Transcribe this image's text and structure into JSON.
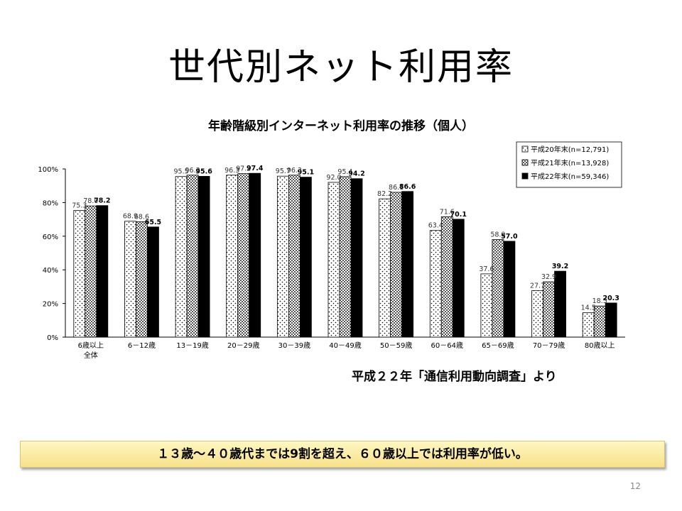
{
  "slide": {
    "title": "世代別ネット利用率",
    "source": "平成２２年「通信利用動向調査」より",
    "conclusion": "１３歳～４０歳代までは9割を超え、６０歳以上では利用率が低い。",
    "page_number": "12"
  },
  "chart_data": {
    "type": "bar",
    "title": "年齢階級別インターネット利用率の推移（個人）",
    "categories": [
      "6歳以上|全体",
      "6－12歳",
      "13－19歳",
      "20－29歳",
      "30－39歳",
      "40－49歳",
      "50－59歳",
      "60－64歳",
      "65－69歳",
      "70－79歳",
      "80歳以上"
    ],
    "series": [
      {
        "name": "平成20年末(n=12,791)",
        "pattern": "dots",
        "values": [
          75.3,
          68.9,
          95.5,
          96.3,
          95.7,
          92.0,
          82.2,
          63.4,
          37.6,
          27.7,
          14.5
        ]
      },
      {
        "name": "平成21年末(n=13,928)",
        "pattern": "checker",
        "values": [
          78.0,
          68.6,
          96.3,
          97.2,
          96.3,
          95.4,
          86.1,
          71.6,
          58.0,
          32.9,
          18.5
        ]
      },
      {
        "name": "平成22年末(n=59,346)",
        "pattern": "solid",
        "values": [
          78.2,
          65.5,
          95.6,
          97.4,
          95.1,
          94.2,
          86.6,
          70.1,
          57.0,
          39.2,
          20.3
        ]
      }
    ],
    "yticks": [
      "0%",
      "20%",
      "40%",
      "60%",
      "80%",
      "100%"
    ],
    "ylim": [
      0,
      100
    ],
    "legend_position": "top-right",
    "grid": false
  }
}
